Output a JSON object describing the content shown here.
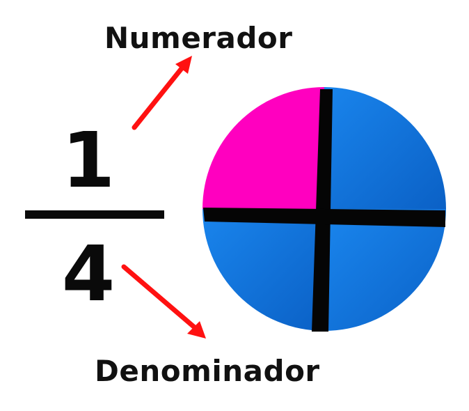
{
  "labels": {
    "numerator": "Numerador",
    "denominator": "Denominador"
  },
  "fraction": {
    "numerator": "1",
    "denominator": "4"
  },
  "circle": {
    "total_parts": 4,
    "shaded_parts": 1
  },
  "colors": {
    "shaded": "#ff00bf",
    "unshaded": "#0a6fd8",
    "unshaded_light": "#1a86ee",
    "divider": "#050505",
    "arrow": "#ff1111",
    "text": "#111111"
  },
  "icons": {
    "arrow_to_numerator": "arrow-up-right-icon",
    "arrow_to_denominator": "arrow-down-right-icon"
  }
}
